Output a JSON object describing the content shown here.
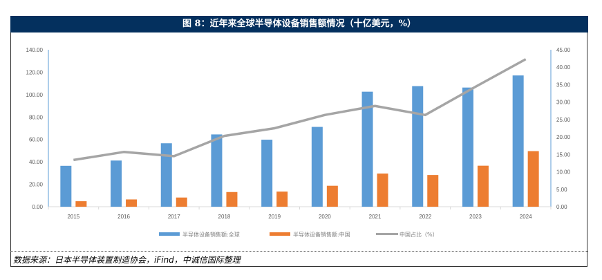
{
  "title": "图 8：近年来全球半导体设备销售额情况（十亿美元，%）",
  "source": "数据来源：日本半导体装置制造协会，iFind，中诚信国际整理",
  "chart_data": {
    "type": "bar",
    "title": "图 8：近年来全球半导体设备销售额情况（十亿美元，%）",
    "categories": [
      "2015",
      "2016",
      "2017",
      "2018",
      "2019",
      "2020",
      "2021",
      "2022",
      "2023",
      "2024"
    ],
    "series": [
      {
        "name": "半导体设备销售额:全球",
        "type": "bar",
        "axis": "left",
        "color": "#5b9bd5",
        "values": [
          36.5,
          41.2,
          56.6,
          64.5,
          59.8,
          71.2,
          102.6,
          107.6,
          106.3,
          117.1
        ]
      },
      {
        "name": "半导体设备销售额:中国",
        "type": "bar",
        "axis": "left",
        "color": "#ed7d31",
        "values": [
          4.9,
          6.5,
          8.2,
          13.1,
          13.5,
          18.7,
          29.6,
          28.3,
          36.6,
          49.6
        ]
      },
      {
        "name": "中国占比（%）",
        "type": "line",
        "axis": "right",
        "color": "#a5a5a5",
        "values": [
          13.4,
          15.7,
          14.5,
          20.3,
          22.5,
          26.3,
          28.9,
          26.3,
          34.4,
          42.3
        ]
      }
    ],
    "yleft": {
      "ylim": [
        0,
        140
      ],
      "ticks": [
        "0.00",
        "20.00",
        "40.00",
        "60.00",
        "80.00",
        "100.00",
        "120.00",
        "140.00"
      ]
    },
    "yright": {
      "ylim": [
        0,
        45
      ],
      "ticks": [
        "0.00",
        "5.00",
        "10.00",
        "15.00",
        "20.00",
        "25.00",
        "30.00",
        "35.00",
        "40.00",
        "45.00"
      ]
    },
    "grid": false,
    "legend": "bottom"
  }
}
